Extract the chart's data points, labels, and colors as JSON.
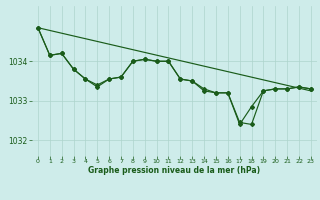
{
  "bg_color": "#ceecea",
  "line_color": "#1a5c1a",
  "grid_color": "#aed4cc",
  "xlabel": "Graphe pression niveau de la mer (hPa)",
  "ylim": [
    1031.6,
    1035.4
  ],
  "xlim": [
    -0.5,
    23.5
  ],
  "yticks": [
    1032,
    1033,
    1034
  ],
  "xticks": [
    0,
    1,
    2,
    3,
    4,
    5,
    6,
    7,
    8,
    9,
    10,
    11,
    12,
    13,
    14,
    15,
    16,
    17,
    18,
    19,
    20,
    21,
    22,
    23
  ],
  "line1_x": [
    0,
    23
  ],
  "line1_y": [
    1034.85,
    1033.25
  ],
  "line2": [
    1034.85,
    1034.15,
    1034.2,
    1033.8,
    1033.55,
    1033.4,
    1033.55,
    1033.6,
    1034.0,
    1034.05,
    1034.0,
    1034.0,
    1033.55,
    1033.5,
    1033.3,
    1033.2,
    1033.2,
    1032.4,
    1032.85,
    1033.25,
    1033.3,
    1033.3,
    1033.35,
    1033.3
  ],
  "line3_x": [
    0,
    1,
    2,
    3,
    4,
    5,
    6,
    7,
    8,
    9,
    10,
    11,
    12,
    13,
    14,
    15,
    16,
    17,
    18,
    19,
    20,
    21,
    22,
    23
  ],
  "line3": [
    1034.85,
    1034.15,
    1034.2,
    1033.8,
    1033.55,
    1033.35,
    1033.55,
    1033.6,
    1034.0,
    1034.05,
    1034.0,
    1034.0,
    1033.55,
    1033.5,
    1033.25,
    1033.2,
    1033.2,
    1032.45,
    1032.4,
    1033.25,
    1033.3,
    1033.3,
    1033.35,
    1033.3
  ],
  "marker_size": 2.0,
  "line_width": 0.85
}
